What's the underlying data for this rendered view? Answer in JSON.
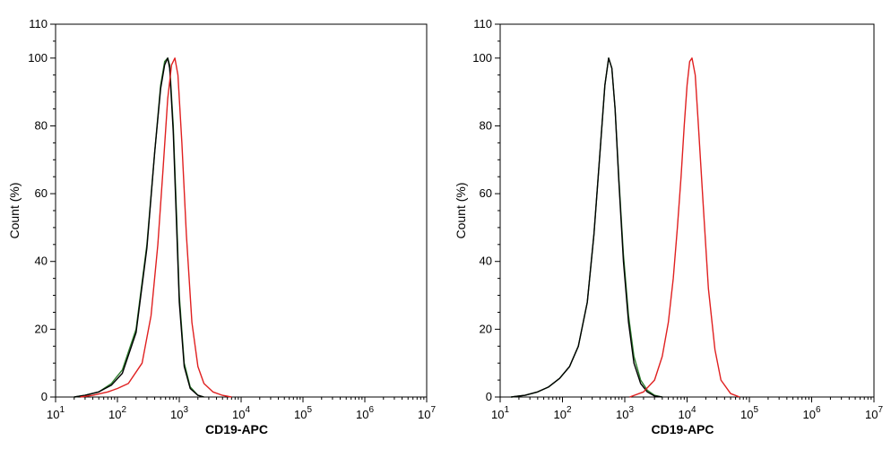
{
  "chart_data": [
    {
      "type": "line",
      "xlabel": "CD19-APC",
      "ylabel": "Count  (%)",
      "x_scale": "log",
      "xlim": [
        10,
        10000000
      ],
      "ylim": [
        0,
        110
      ],
      "x_ticks": [
        {
          "base": "10",
          "exp": "1"
        },
        {
          "base": "10",
          "exp": "2"
        },
        {
          "base": "10",
          "exp": "3"
        },
        {
          "base": "10",
          "exp": "4"
        },
        {
          "base": "10",
          "exp": "5"
        },
        {
          "base": "10",
          "exp": "6"
        },
        {
          "base": "10",
          "exp": "7"
        }
      ],
      "y_ticks": [
        "0",
        "20",
        "40",
        "60",
        "80",
        "100",
        "110"
      ],
      "grid": false,
      "series": [
        {
          "color": "#2e7d2e",
          "x": [
            20,
            30,
            50,
            80,
            120,
            200,
            300,
            400,
            500,
            580,
            650,
            700,
            800,
            900,
            1000,
            1200,
            1500,
            2000,
            2500
          ],
          "y": [
            0,
            0.5,
            1.5,
            4,
            8,
            20,
            45,
            72,
            92,
            99,
            100,
            98,
            80,
            55,
            30,
            10,
            3,
            0.5,
            0
          ]
        },
        {
          "color": "#000000",
          "x": [
            20,
            30,
            50,
            80,
            120,
            200,
            300,
            400,
            500,
            580,
            650,
            700,
            800,
            900,
            1000,
            1200,
            1500,
            2000,
            2500
          ],
          "y": [
            0,
            0.5,
            1.5,
            3.5,
            7,
            19,
            44,
            72,
            91,
            98,
            100,
            97,
            78,
            52,
            28,
            9,
            2.5,
            0.5,
            0
          ]
        },
        {
          "color": "#e02020",
          "x": [
            25,
            40,
            70,
            100,
            150,
            250,
            350,
            450,
            550,
            650,
            750,
            850,
            950,
            1100,
            1300,
            1600,
            2000,
            2500,
            3500,
            5000,
            7000
          ],
          "y": [
            0,
            0.5,
            1.5,
            2.5,
            4,
            10,
            24,
            45,
            68,
            88,
            98,
            100,
            95,
            75,
            48,
            22,
            9,
            4,
            1.5,
            0.5,
            0
          ]
        }
      ]
    },
    {
      "type": "line",
      "xlabel": "CD19-APC",
      "ylabel": "Count  (%)",
      "x_scale": "log",
      "xlim": [
        10,
        10000000
      ],
      "ylim": [
        0,
        110
      ],
      "x_ticks": [
        {
          "base": "10",
          "exp": "1"
        },
        {
          "base": "10",
          "exp": "2"
        },
        {
          "base": "10",
          "exp": "3"
        },
        {
          "base": "10",
          "exp": "4"
        },
        {
          "base": "10",
          "exp": "5"
        },
        {
          "base": "10",
          "exp": "6"
        },
        {
          "base": "10",
          "exp": "7"
        }
      ],
      "y_ticks": [
        "0",
        "20",
        "40",
        "60",
        "80",
        "100",
        "110"
      ],
      "grid": false,
      "series": [
        {
          "color": "#2e7d2e",
          "x": [
            15,
            25,
            40,
            60,
            90,
            130,
            180,
            250,
            320,
            400,
            480,
            550,
            620,
            700,
            800,
            950,
            1150,
            1400,
            1800,
            2300,
            3000,
            4000
          ],
          "y": [
            0,
            0.5,
            1.5,
            3,
            5.5,
            9,
            15,
            28,
            48,
            72,
            92,
            100,
            97,
            85,
            65,
            42,
            24,
            12,
            5,
            2,
            0.5,
            0
          ]
        },
        {
          "color": "#000000",
          "x": [
            15,
            25,
            40,
            60,
            90,
            130,
            180,
            250,
            320,
            400,
            480,
            550,
            620,
            700,
            800,
            950,
            1150,
            1400,
            1800,
            2300,
            3000,
            4000
          ],
          "y": [
            0,
            0.5,
            1.5,
            3,
            5.5,
            9,
            15,
            28,
            48,
            72,
            92,
            100,
            97,
            85,
            64,
            40,
            22,
            10,
            4,
            1.5,
            0.3,
            0
          ]
        },
        {
          "color": "#e02020",
          "x": [
            1200,
            2000,
            3000,
            4000,
            5000,
            6000,
            7000,
            8000,
            9000,
            10000,
            11000,
            12000,
            13500,
            15000,
            18000,
            22000,
            28000,
            35000,
            50000,
            70000
          ],
          "y": [
            0,
            1.5,
            5,
            12,
            22,
            35,
            50,
            65,
            80,
            92,
            99,
            100,
            95,
            82,
            58,
            32,
            14,
            5,
            1,
            0
          ]
        }
      ]
    }
  ]
}
